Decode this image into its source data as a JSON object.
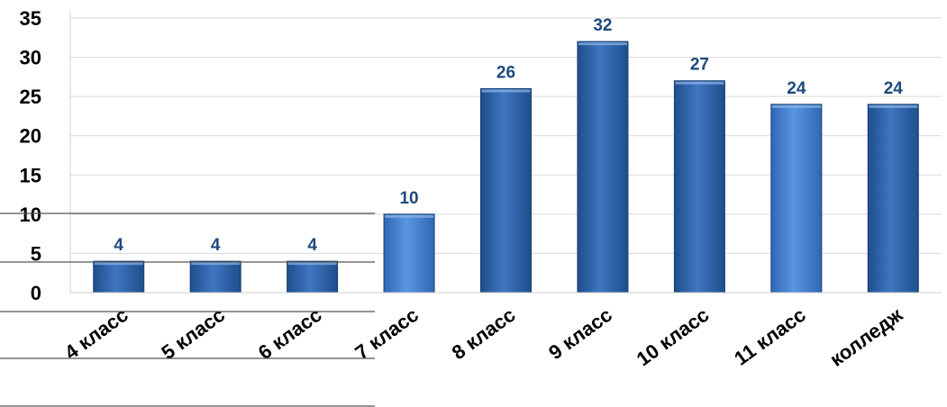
{
  "chart_data": {
    "type": "bar",
    "categories": [
      "4 класс",
      "5 класс",
      "6 класс",
      "7 класс",
      "8 класс",
      "9 класс",
      "10 класс",
      "11 класс",
      "колледж"
    ],
    "values": [
      4,
      4,
      4,
      10,
      26,
      32,
      27,
      24,
      24
    ],
    "ylim": [
      0,
      35
    ],
    "yticks": [
      "0",
      "5",
      "10",
      "15",
      "20",
      "25",
      "30",
      "35"
    ],
    "data_labels": [
      "4",
      "4",
      "4",
      "10",
      "26",
      "32",
      "27",
      "24",
      "24"
    ],
    "grid": true,
    "legend": "none",
    "colors": {
      "bar_dark": "#2a5a9b",
      "bar_light": "#4a86d0",
      "label": "#1f497d",
      "grid": "#d9d9d9"
    }
  }
}
